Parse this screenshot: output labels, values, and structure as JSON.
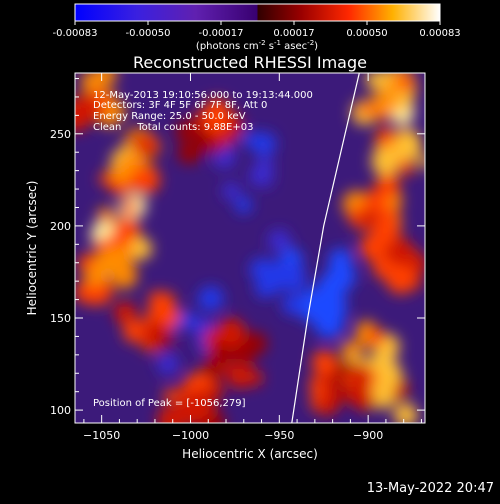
{
  "colorbar": {
    "ticks": [
      "-0.00083",
      "-0.00050",
      "-0.00017",
      "0.00017",
      "0.00050",
      "0.00083"
    ],
    "units_main": "(photons cm",
    "units_exp1": "-2",
    "units_mid1": " s",
    "units_exp2": "-1",
    "units_mid2": " asec",
    "units_exp3": "-2",
    "units_end": ")"
  },
  "chart_data": {
    "type": "heatmap",
    "title": "Reconstructed RHESSI Image",
    "xlabel": "Heliocentric X (arcsec)",
    "ylabel": "Heliocentric Y (arcsec)",
    "xlim": [
      -1065,
      -868
    ],
    "ylim": [
      93,
      283
    ],
    "x_ticks": [
      -1050,
      -1000,
      -950,
      -900
    ],
    "x_tick_labels": [
      "−1050",
      "−1000",
      "−950",
      "−900"
    ],
    "y_ticks": [
      100,
      150,
      200,
      250
    ],
    "y_tick_labels": [
      "100",
      "150",
      "200",
      "250"
    ],
    "value_range": [
      -0.00083,
      0.00083
    ],
    "annotations": [
      "12-May-2013 19:10:56.000 to 19:13:44.000",
      "Detectors: 3F 4F 5F 6F 7F 8F, Att 0",
      "Energy Range: 25.0 - 50.0 keV",
      "Clean     Total counts: 9.88E+03"
    ],
    "peak_label": "Position of Peak = [-1056,279]",
    "limb_curve": [
      [
        -943,
        93
      ],
      [
        -934,
        150
      ],
      [
        -925,
        200
      ],
      [
        -913,
        250
      ],
      [
        -905,
        283
      ]
    ],
    "bright_regions": [
      {
        "x": -1040,
        "y": 200,
        "intensity": 1.0
      },
      {
        "x": -1050,
        "y": 175,
        "intensity": 0.9
      },
      {
        "x": -1035,
        "y": 235,
        "intensity": 0.8
      },
      {
        "x": -1025,
        "y": 150,
        "intensity": 0.6
      },
      {
        "x": -1055,
        "y": 270,
        "intensity": 0.8
      },
      {
        "x": -890,
        "y": 270,
        "intensity": 1.0
      },
      {
        "x": -880,
        "y": 240,
        "intensity": 0.9
      },
      {
        "x": -895,
        "y": 210,
        "intensity": 0.7
      },
      {
        "x": -885,
        "y": 180,
        "intensity": 0.6
      },
      {
        "x": -900,
        "y": 130,
        "intensity": 1.0
      },
      {
        "x": -890,
        "y": 110,
        "intensity": 0.9
      },
      {
        "x": -915,
        "y": 115,
        "intensity": 0.6
      },
      {
        "x": -990,
        "y": 250,
        "intensity": 0.5
      },
      {
        "x": -975,
        "y": 130,
        "intensity": 0.4
      },
      {
        "x": -1000,
        "y": 105,
        "intensity": 0.5
      }
    ],
    "dim_regions": [
      {
        "x": -928,
        "y": 165,
        "intensity": 1.0
      },
      {
        "x": -955,
        "y": 175,
        "intensity": 0.6
      },
      {
        "x": -1000,
        "y": 145,
        "intensity": 0.5
      },
      {
        "x": -970,
        "y": 230,
        "intensity": 0.4
      }
    ]
  },
  "footer": {
    "timestamp": "13-May-2022 20:47"
  }
}
